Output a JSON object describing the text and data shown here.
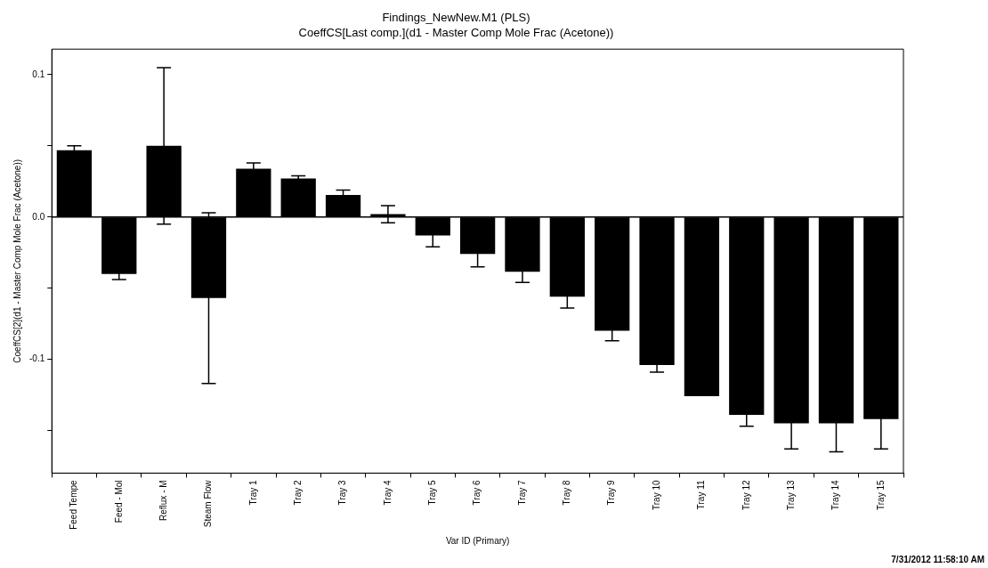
{
  "chart_data": {
    "type": "bar",
    "title": "Findings_NewNew.M1 (PLS)",
    "subtitle": "CoeffCS[Last comp.](d1 - Master Comp Mole Frac (Acetone))",
    "xlabel": "Var ID (Primary)",
    "ylabel": "CoeffCS[2](d1 - Master Comp Mole Frac (Acetone))",
    "categories": [
      "Feed Tempe",
      "Feed - Mol",
      "Reflux - M",
      "Steam Flow",
      "Tray 1",
      "Tray 2",
      "Tray 3",
      "Tray 4",
      "Tray 5",
      "Tray 6",
      "Tray 7",
      "Tray 8",
      "Tray 9",
      "Tray 10",
      "Tray 11",
      "Tray 12",
      "Tray 13",
      "Tray 14",
      "Tray 15"
    ],
    "values": [
      0.047,
      -0.04,
      0.05,
      -0.057,
      0.034,
      0.027,
      0.0155,
      0.002,
      -0.013,
      -0.026,
      -0.0385,
      -0.056,
      -0.08,
      -0.104,
      -0.126,
      -0.139,
      -0.145,
      -0.145,
      -0.142
    ],
    "errors": [
      0.003,
      0.004,
      0.055,
      0.06,
      0.004,
      0.002,
      0.0035,
      0.006,
      0.008,
      0.009,
      0.0075,
      0.008,
      0.007,
      0.005,
      null,
      0.008,
      0.018,
      0.02,
      0.021
    ],
    "color": "#000000",
    "ylim": [
      -0.18,
      0.118
    ],
    "yticks": [
      {
        "value": 0.1,
        "label": "0.1"
      },
      {
        "value": 0.05,
        "label": null
      },
      {
        "value": 0,
        "label": "0.0"
      },
      {
        "value": -0.05,
        "label": null
      },
      {
        "value": -0.1,
        "label": "-0.1"
      },
      {
        "value": -0.15,
        "label": null
      }
    ],
    "grid": false,
    "legend": false,
    "ref_lines": [
      {
        "axis": "y",
        "value": 0,
        "color": "#000000"
      }
    ],
    "annotations": [
      "7/31/2012 11:58:10 AM"
    ]
  }
}
